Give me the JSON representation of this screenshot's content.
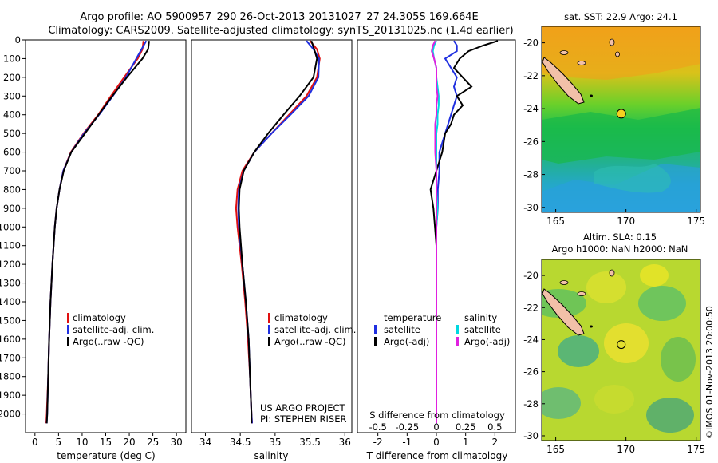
{
  "header": {
    "line1": "Argo profile: AO 5900957_290 26-Oct-2013 20131027_27 24.305S 169.664E",
    "line2": "Climatology: CARS2009. Satellite-adjusted climatology: synTS_20131025.nc (1.4d earlier)"
  },
  "colors": {
    "climatology": "#e01010",
    "satellite": "#1f2fe0",
    "argo": "#000000",
    "sal_satellite": "#00d8e0",
    "sal_argo": "#e020e0"
  },
  "chart_data": [
    {
      "type": "line",
      "title": "",
      "xlabel": "temperature (deg C)",
      "ylabel": "",
      "xlim": [
        -2,
        32
      ],
      "ylim": [
        2100,
        0
      ],
      "xticks": [
        "0",
        "5",
        "10",
        "15",
        "20",
        "25",
        "30"
      ],
      "yticks": [
        "0",
        "100",
        "200",
        "300",
        "400",
        "500",
        "600",
        "700",
        "800",
        "900",
        "1000",
        "1100",
        "1200",
        "1300",
        "1400",
        "1500",
        "1600",
        "1700",
        "1800",
        "1900",
        "2000"
      ],
      "legend": [
        "climatology",
        "satellite-adj. clim.",
        "Argo(..raw -QC)"
      ],
      "depth": [
        5,
        50,
        100,
        200,
        300,
        400,
        500,
        600,
        700,
        800,
        900,
        1000,
        1200,
        1400,
        1600,
        1800,
        2000,
        2050
      ],
      "series": [
        {
          "name": "climatology",
          "values": [
            23.0,
            22.8,
            21.8,
            18.9,
            16.1,
            13.4,
            10.3,
            7.6,
            6.0,
            5.2,
            4.6,
            4.2,
            3.7,
            3.3,
            3.0,
            2.8,
            2.5,
            2.4
          ]
        },
        {
          "name": "satellite-adj. clim.",
          "values": [
            23.6,
            22.6,
            21.5,
            19.3,
            16.5,
            13.6,
            10.4,
            7.7,
            6.0,
            5.2,
            4.6,
            4.2,
            3.7,
            3.3,
            3.0,
            2.8,
            2.6,
            2.5
          ]
        },
        {
          "name": "Argo(..raw -QC)",
          "values": [
            24.2,
            24.0,
            22.8,
            19.5,
            16.4,
            13.5,
            10.6,
            7.7,
            6.1,
            5.2,
            4.6,
            4.2,
            3.7,
            3.3,
            3.0,
            2.8,
            2.6,
            2.5
          ]
        }
      ]
    },
    {
      "type": "line",
      "title": "",
      "xlabel": "salinity",
      "ylabel": "",
      "xlim": [
        33.8,
        36.1
      ],
      "ylim": [
        2100,
        0
      ],
      "xticks": [
        "34",
        "34.5",
        "35",
        "35.5",
        "36"
      ],
      "legend": [
        "climatology",
        "satellite-adj. clim.",
        "Argo(..raw -QC)"
      ],
      "annotation": [
        "US ARGO PROJECT",
        "PI: STEPHEN RISER"
      ],
      "depth": [
        5,
        50,
        100,
        200,
        300,
        400,
        500,
        600,
        700,
        800,
        900,
        1000,
        1200,
        1400,
        1600,
        1800,
        2000,
        2050
      ],
      "series": [
        {
          "name": "climatology",
          "values": [
            35.5,
            35.6,
            35.64,
            35.6,
            35.45,
            35.2,
            34.95,
            34.7,
            34.53,
            34.46,
            34.44,
            34.46,
            34.52,
            34.57,
            34.61,
            34.64,
            34.66,
            34.67
          ]
        },
        {
          "name": "satellite-adj. clim.",
          "values": [
            35.45,
            35.55,
            35.63,
            35.62,
            35.48,
            35.22,
            34.95,
            34.7,
            34.55,
            34.48,
            34.47,
            34.48,
            34.53,
            34.58,
            34.62,
            34.64,
            34.66,
            34.67
          ]
        },
        {
          "name": "Argo(..raw -QC)",
          "values": [
            35.52,
            35.56,
            35.6,
            35.55,
            35.35,
            35.12,
            34.9,
            34.7,
            34.55,
            34.49,
            34.48,
            34.49,
            34.53,
            34.58,
            34.62,
            34.64,
            34.66,
            34.66
          ]
        }
      ]
    },
    {
      "type": "line",
      "title": "",
      "xlabel": "T difference from climatology",
      "xlabel_top": "S difference from climatology",
      "xlim": [
        -2.7,
        2.7
      ],
      "ylim": [
        2100,
        0
      ],
      "xticks": [
        "-2",
        "-1",
        "0",
        "1",
        "2"
      ],
      "xticks_top": [
        "-0.5",
        "-0.25",
        "0",
        "0.25",
        "0.5"
      ],
      "legend_temperature": [
        "temperature",
        "satellite",
        "Argo(-adj)"
      ],
      "legend_salinity": [
        "salinity",
        "satellite",
        "Argo(-adj)"
      ],
      "depth": [
        5,
        30,
        60,
        100,
        150,
        200,
        250,
        300,
        350,
        400,
        450,
        500,
        600,
        700,
        800,
        900,
        1000,
        1100,
        1200,
        1400,
        1600,
        1800,
        2000,
        2050
      ],
      "series": [
        {
          "name": "T satellite",
          "values": [
            0.6,
            0.7,
            0.7,
            0.3,
            0.5,
            0.7,
            0.6,
            0.7,
            0.6,
            0.5,
            0.4,
            0.3,
            0.1,
            0.1,
            0.05,
            0.05,
            0.0,
            0.0,
            0.0,
            0.0,
            0.0,
            0.0,
            0.0,
            0.0
          ]
        },
        {
          "name": "T Argo(-adj)",
          "values": [
            2.1,
            1.6,
            1.1,
            0.8,
            0.6,
            0.9,
            1.2,
            0.7,
            0.9,
            0.6,
            0.5,
            0.3,
            0.2,
            0.0,
            -0.2,
            -0.1,
            -0.05,
            0.0,
            0.0,
            0.0,
            0.0,
            0.0,
            0.0,
            0.0
          ]
        },
        {
          "name": "S satellite",
          "values": [
            0.0,
            -0.02,
            -0.03,
            -0.02,
            0.0,
            0.0,
            0.01,
            0.02,
            0.02,
            0.01,
            0.01,
            0.0,
            0.0,
            0.0,
            0.0,
            0.01,
            0.0,
            0.0,
            0.0,
            0.0,
            0.0,
            0.0,
            0.0,
            0.0
          ]
        },
        {
          "name": "S Argo(-adj)",
          "values": [
            -0.01,
            -0.03,
            -0.04,
            -0.02,
            0.0,
            0.0,
            0.0,
            0.01,
            0.0,
            0.0,
            -0.01,
            -0.01,
            -0.01,
            0.0,
            0.0,
            0.0,
            0.0,
            0.0,
            0.0,
            0.0,
            0.0,
            0.0,
            0.0,
            0.0
          ]
        }
      ]
    },
    {
      "type": "heatmap",
      "title": "sat. SST: 22.9 Argo: 24.1",
      "xlim": [
        164,
        175.3
      ],
      "ylim": [
        -30.3,
        -19
      ],
      "xticks": [
        "165",
        "170",
        "175"
      ],
      "yticks": [
        "-20",
        "-22",
        "-24",
        "-26",
        "-28",
        "-30"
      ],
      "marker": {
        "lon": 169.664,
        "lat": -24.305
      }
    },
    {
      "type": "heatmap",
      "title": "Altim. SLA: 0.15",
      "subtitle": "Argo h1000: NaN h2000: NaN",
      "xlim": [
        164,
        175.3
      ],
      "ylim": [
        -30.3,
        -19
      ],
      "xticks": [
        "165",
        "170",
        "175"
      ],
      "yticks": [
        "-20",
        "-22",
        "-24",
        "-26",
        "-28",
        "-30"
      ],
      "marker": {
        "lon": 169.664,
        "lat": -24.305
      }
    }
  ],
  "side_label": "©IMOS 01-Nov-2013 20:00:50"
}
